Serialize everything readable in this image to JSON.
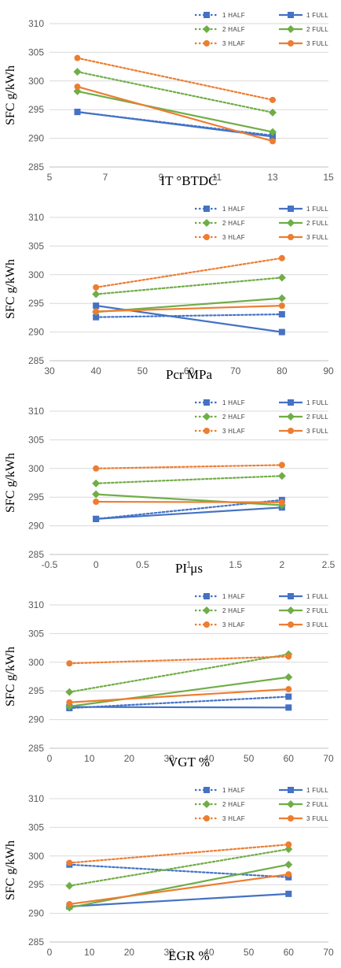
{
  "colors": {
    "s1": "#4472C4",
    "s2": "#70AD47",
    "s3": "#ED7D31",
    "grid": "#D9D9D9"
  },
  "legend": [
    "1 HALF",
    "1 FULL",
    "2 HALF",
    "2 FULL",
    "3 HLAF",
    "3 FULL"
  ],
  "chart_data": [
    {
      "type": "line",
      "xlabel": "IT °BTDC",
      "ylabel": "SFC g/kWh",
      "xlim": [
        5,
        15
      ],
      "xticks": [
        5,
        7,
        9,
        11,
        13,
        15
      ],
      "ylim": [
        285,
        310
      ],
      "yticks": [
        285,
        290,
        295,
        300,
        305,
        310
      ],
      "x": [
        6,
        13
      ],
      "grid": "horizontal",
      "legend_position": "top-right",
      "series": [
        {
          "name": "1 HALF",
          "style": "dotted",
          "color": "#4472C4",
          "marker": "square",
          "values": [
            294.6,
            290.5
          ]
        },
        {
          "name": "1 FULL",
          "style": "solid",
          "color": "#4472C4",
          "marker": "square",
          "values": [
            294.6,
            290.3
          ]
        },
        {
          "name": "2 HALF",
          "style": "dotted",
          "color": "#70AD47",
          "marker": "diamond",
          "values": [
            301.6,
            294.5
          ]
        },
        {
          "name": "2 FULL",
          "style": "solid",
          "color": "#70AD47",
          "marker": "diamond",
          "values": [
            298.2,
            291.1
          ]
        },
        {
          "name": "3 HLAF",
          "style": "dotted",
          "color": "#ED7D31",
          "marker": "circle",
          "values": [
            304.0,
            296.7
          ]
        },
        {
          "name": "3 FULL",
          "style": "solid",
          "color": "#ED7D31",
          "marker": "circle",
          "values": [
            299.0,
            289.5
          ]
        }
      ]
    },
    {
      "type": "line",
      "xlabel": "Pcr MPa",
      "ylabel": "SFC g/kWh",
      "xlim": [
        30,
        90
      ],
      "xticks": [
        30,
        40,
        50,
        60,
        70,
        80,
        90
      ],
      "ylim": [
        285,
        310
      ],
      "yticks": [
        285,
        290,
        295,
        300,
        305,
        310
      ],
      "x": [
        40,
        80
      ],
      "grid": "horizontal",
      "legend_position": "top-right",
      "series": [
        {
          "name": "1 HALF",
          "style": "dotted",
          "color": "#4472C4",
          "marker": "square",
          "values": [
            292.6,
            293.1
          ]
        },
        {
          "name": "1 FULL",
          "style": "solid",
          "color": "#4472C4",
          "marker": "square",
          "values": [
            294.6,
            290.0
          ]
        },
        {
          "name": "2 HALF",
          "style": "dotted",
          "color": "#70AD47",
          "marker": "diamond",
          "values": [
            296.6,
            299.5
          ]
        },
        {
          "name": "2 FULL",
          "style": "solid",
          "color": "#70AD47",
          "marker": "diamond",
          "values": [
            293.5,
            295.9
          ]
        },
        {
          "name": "3 HLAF",
          "style": "dotted",
          "color": "#ED7D31",
          "marker": "circle",
          "values": [
            297.8,
            302.9
          ]
        },
        {
          "name": "3 FULL",
          "style": "solid",
          "color": "#ED7D31",
          "marker": "circle",
          "values": [
            293.6,
            294.6
          ]
        }
      ]
    },
    {
      "type": "line",
      "xlabel": "PI μs",
      "ylabel": "SFC g/kWh",
      "xlim": [
        -0.5,
        2.5
      ],
      "xticks": [
        -0.5,
        0,
        0.5,
        1,
        1.5,
        2,
        2.5
      ],
      "ylim": [
        285,
        310
      ],
      "yticks": [
        285,
        290,
        295,
        300,
        305,
        310
      ],
      "x": [
        0,
        2
      ],
      "grid": "horizontal",
      "legend_position": "top-right",
      "series": [
        {
          "name": "1 HALF",
          "style": "dotted",
          "color": "#4472C4",
          "marker": "square",
          "values": [
            291.2,
            294.5
          ]
        },
        {
          "name": "1 FULL",
          "style": "solid",
          "color": "#4472C4",
          "marker": "square",
          "values": [
            291.2,
            293.2
          ]
        },
        {
          "name": "2 HALF",
          "style": "dotted",
          "color": "#70AD47",
          "marker": "diamond",
          "values": [
            297.4,
            298.7
          ]
        },
        {
          "name": "2 FULL",
          "style": "solid",
          "color": "#70AD47",
          "marker": "diamond",
          "values": [
            295.5,
            293.6
          ]
        },
        {
          "name": "3 HLAF",
          "style": "dotted",
          "color": "#ED7D31",
          "marker": "circle",
          "values": [
            300.0,
            300.6
          ]
        },
        {
          "name": "3 FULL",
          "style": "solid",
          "color": "#ED7D31",
          "marker": "circle",
          "values": [
            294.2,
            294.1
          ]
        }
      ]
    },
    {
      "type": "line",
      "xlabel": "VGT %",
      "ylabel": "SFC g/kWh",
      "xlim": [
        0,
        70
      ],
      "xticks": [
        0,
        10,
        20,
        30,
        40,
        50,
        60,
        70
      ],
      "ylim": [
        285,
        310
      ],
      "yticks": [
        285,
        290,
        295,
        300,
        305,
        310
      ],
      "x": [
        5,
        60
      ],
      "grid": "horizontal",
      "legend_position": "top-right",
      "series": [
        {
          "name": "1 HALF",
          "style": "dotted",
          "color": "#4472C4",
          "marker": "square",
          "values": [
            292.0,
            294.0
          ]
        },
        {
          "name": "1 FULL",
          "style": "solid",
          "color": "#4472C4",
          "marker": "square",
          "values": [
            292.2,
            292.1
          ]
        },
        {
          "name": "2 HALF",
          "style": "dotted",
          "color": "#70AD47",
          "marker": "diamond",
          "values": [
            294.8,
            301.4
          ]
        },
        {
          "name": "2 FULL",
          "style": "solid",
          "color": "#70AD47",
          "marker": "diamond",
          "values": [
            292.3,
            297.4
          ]
        },
        {
          "name": "3 HLAF",
          "style": "dotted",
          "color": "#ED7D31",
          "marker": "circle",
          "values": [
            299.8,
            301.0
          ]
        },
        {
          "name": "3 FULL",
          "style": "solid",
          "color": "#ED7D31",
          "marker": "circle",
          "values": [
            293.0,
            295.3
          ]
        }
      ]
    },
    {
      "type": "line",
      "xlabel": "EGR %",
      "ylabel": "SFC g/kWh",
      "xlim": [
        0,
        70
      ],
      "xticks": [
        0,
        10,
        20,
        30,
        40,
        50,
        60,
        70
      ],
      "ylim": [
        285,
        310
      ],
      "yticks": [
        285,
        290,
        295,
        300,
        305,
        310
      ],
      "x": [
        5,
        60
      ],
      "grid": "horizontal",
      "legend_position": "top-right",
      "series": [
        {
          "name": "1 HALF",
          "style": "dotted",
          "color": "#4472C4",
          "marker": "square",
          "values": [
            298.5,
            296.3
          ]
        },
        {
          "name": "1 FULL",
          "style": "solid",
          "color": "#4472C4",
          "marker": "square",
          "values": [
            291.2,
            293.4
          ]
        },
        {
          "name": "2 HALF",
          "style": "dotted",
          "color": "#70AD47",
          "marker": "diamond",
          "values": [
            294.8,
            301.2
          ]
        },
        {
          "name": "2 FULL",
          "style": "solid",
          "color": "#70AD47",
          "marker": "diamond",
          "values": [
            291.0,
            298.5
          ]
        },
        {
          "name": "3 HLAF",
          "style": "dotted",
          "color": "#ED7D31",
          "marker": "circle",
          "values": [
            298.8,
            302.0
          ]
        },
        {
          "name": "3 FULL",
          "style": "solid",
          "color": "#ED7D31",
          "marker": "circle",
          "values": [
            291.6,
            296.8
          ]
        }
      ]
    }
  ]
}
